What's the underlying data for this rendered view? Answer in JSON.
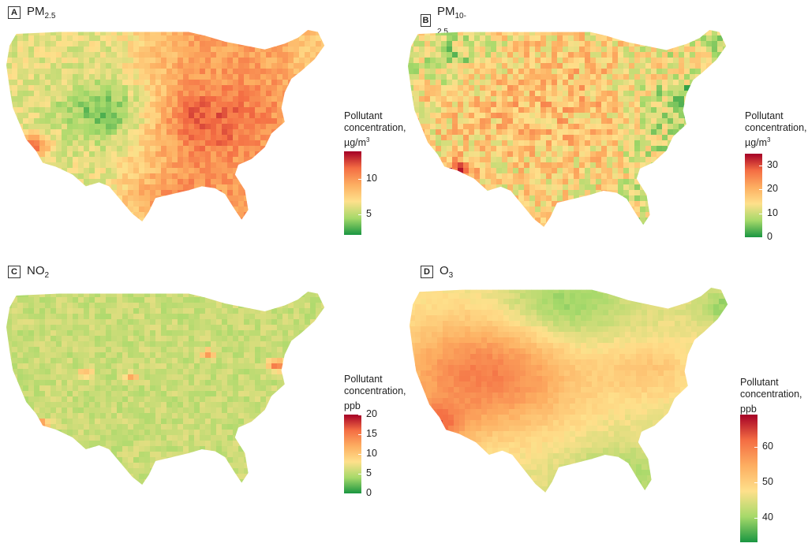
{
  "panels": [
    {
      "letter": "A",
      "title_main": "PM",
      "title_sub": "2.5",
      "legend": {
        "line1": "Pollutant",
        "line2": "concentration,",
        "unit_main": "µg/m",
        "unit_sup": "3",
        "min": 2,
        "max": 14,
        "ticks": [
          {
            "value": 5,
            "label": "5"
          },
          {
            "value": 10,
            "label": "10"
          }
        ]
      },
      "pattern": "pm25"
    },
    {
      "letter": "B",
      "title_main": "PM",
      "title_sub": "10-2.5",
      "legend": {
        "line1": "Pollutant",
        "line2": "concentration,",
        "unit_main": "µg/m",
        "unit_sup": "3",
        "min": 0,
        "max": 35,
        "ticks": [
          {
            "value": 0,
            "label": "0"
          },
          {
            "value": 10,
            "label": "10"
          },
          {
            "value": 20,
            "label": "20"
          },
          {
            "value": 30,
            "label": "30"
          }
        ]
      },
      "pattern": "pm10"
    },
    {
      "letter": "C",
      "title_main": "NO",
      "title_sub": "2",
      "legend": {
        "line1": "Pollutant",
        "line2": "concentration,",
        "unit_main": "ppb",
        "unit_sup": "",
        "min": 0,
        "max": 20,
        "ticks": [
          {
            "value": 0,
            "label": "0"
          },
          {
            "value": 5,
            "label": "5"
          },
          {
            "value": 10,
            "label": "10"
          },
          {
            "value": 15,
            "label": "15"
          },
          {
            "value": 20,
            "label": "20"
          }
        ]
      },
      "pattern": "no2"
    },
    {
      "letter": "D",
      "title_main": "O",
      "title_sub": "3",
      "legend": {
        "line1": "Pollutant",
        "line2": "concentration,",
        "unit_main": "ppb",
        "unit_sup": "",
        "min": 33,
        "max": 69,
        "ticks": [
          {
            "value": 40,
            "label": "40"
          },
          {
            "value": 50,
            "label": "50"
          },
          {
            "value": 60,
            "label": "60"
          }
        ]
      },
      "pattern": "o3"
    }
  ],
  "colors": {
    "scale": [
      "#1a9641",
      "#a6d96a",
      "#fee08b",
      "#fdae61",
      "#f46d43",
      "#a50026"
    ]
  }
}
